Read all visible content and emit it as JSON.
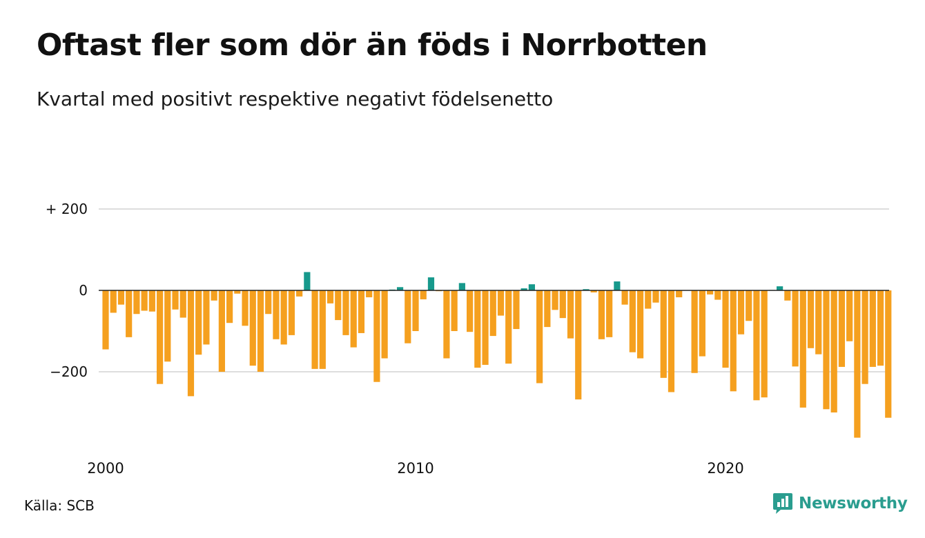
{
  "title": "Oftast fler som dör än föds i Norrbotten",
  "subtitle": "Kvartal med positivt respektive negativt födelsenetto",
  "source": "Källa: SCB",
  "brand": "Newsworthy",
  "colors": {
    "positive": "#17998c",
    "negative": "#f5a01f",
    "brand": "#2a9d8f",
    "grid": "#dddddd"
  },
  "chart_data": {
    "type": "bar",
    "start_year": 2000,
    "xtick_labels": [
      "2000",
      "2010",
      "2020"
    ],
    "ytick_labels": [
      "+ 200",
      "0",
      "−200"
    ],
    "yticks": [
      200,
      0,
      -200
    ],
    "ylim": [
      -370,
      200
    ],
    "values": [
      -145,
      -55,
      -35,
      -115,
      -58,
      -50,
      -52,
      -230,
      -175,
      -47,
      -67,
      -260,
      -158,
      -133,
      -25,
      -200,
      -80,
      -8,
      -87,
      -185,
      -200,
      -58,
      -120,
      -133,
      -110,
      -15,
      45,
      -193,
      -193,
      -32,
      -73,
      -110,
      -140,
      -105,
      -17,
      -225,
      -167,
      2,
      8,
      -130,
      -100,
      -22,
      32,
      -2,
      -167,
      -100,
      18,
      -102,
      -190,
      -183,
      -112,
      -62,
      -180,
      -95,
      5,
      15,
      -228,
      -90,
      -48,
      -68,
      -118,
      -268,
      3,
      -5,
      -120,
      -115,
      22,
      -35,
      -152,
      -167,
      -45,
      -30,
      -215,
      -250,
      -17,
      0,
      -203,
      -162,
      -10,
      -23,
      -190,
      -248,
      -108,
      -75,
      -270,
      -263,
      1,
      10,
      -25,
      -187,
      -288,
      -142,
      -157,
      -292,
      -300,
      -188,
      -125,
      -362,
      -230,
      -188,
      -185,
      -313
    ]
  }
}
